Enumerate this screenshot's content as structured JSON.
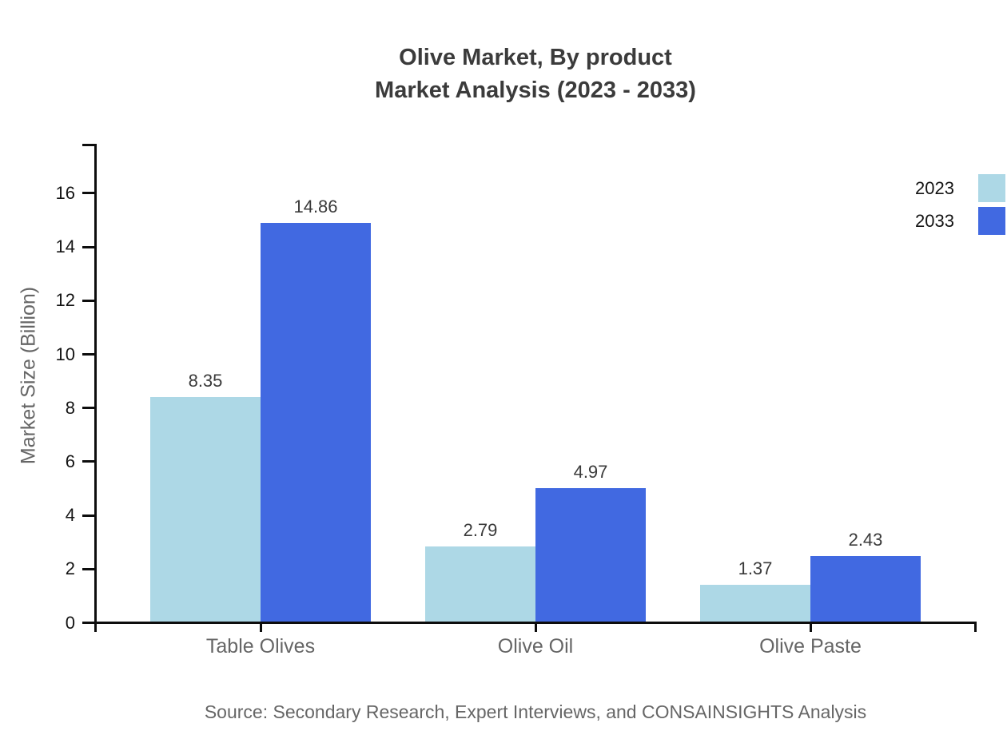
{
  "source": "Source: Secondary Research, Expert Interviews, and CONSAINSIGHTS Analysis",
  "chart_data": {
    "type": "bar",
    "title": "Olive Market, By product Market Analysis (2023 - 2033)",
    "title_lines": [
      "Olive Market, By product",
      "Market Analysis (2023 - 2033)"
    ],
    "categories": [
      "Table Olives",
      "Olive Oil",
      "Olive Paste"
    ],
    "series": [
      {
        "name": "2023",
        "color": "#ADD8E6",
        "values": [
          8.35,
          2.79,
          1.37
        ]
      },
      {
        "name": "2033",
        "color": "#4169E1",
        "values": [
          14.86,
          4.97,
          2.43
        ]
      }
    ],
    "xlabel": "",
    "ylabel": "Market Size (Billion)",
    "ylim": [
      0,
      17.8
    ],
    "yticks": [
      0,
      2,
      4,
      6,
      8,
      10,
      12,
      14,
      16
    ],
    "grid": false,
    "value_labels": true,
    "legend_position": "top-right",
    "axis_color": "#0d0d0d",
    "text_colors": {
      "title": "#3b3b3b",
      "tick_labels": "#141414",
      "category_labels": "#666666",
      "value_labels": "#3a3a3a",
      "source": "#666666"
    }
  }
}
